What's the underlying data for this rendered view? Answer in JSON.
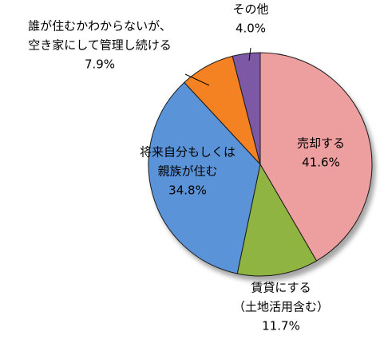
{
  "chart_data": {
    "type": "pie",
    "start_angle_deg": 0,
    "direction": "clockwise",
    "slices": [
      {
        "label_lines": [
          "売却する"
        ],
        "value": 41.6,
        "value_text": "41.6%",
        "color": "#ED9E9E"
      },
      {
        "label_lines": [
          "賃貸にする",
          "（土地活用含む）"
        ],
        "value": 11.7,
        "value_text": "11.7%",
        "color": "#8FB442"
      },
      {
        "label_lines": [
          "将来自分もしくは",
          "親族が住む"
        ],
        "value": 34.8,
        "value_text": "34.8%",
        "color": "#5A93D8"
      },
      {
        "label_lines": [
          "誰が住むかわからないが、",
          "空き家にして管理し続ける"
        ],
        "value": 7.9,
        "value_text": "7.9%",
        "color": "#F58220"
      },
      {
        "label_lines": [
          "その他"
        ],
        "value": 4.0,
        "value_text": "4.0%",
        "color": "#7B59A5"
      }
    ]
  }
}
